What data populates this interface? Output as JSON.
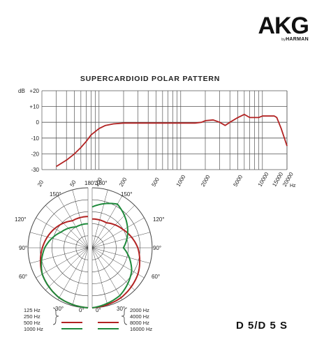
{
  "brand": {
    "name": "AKG",
    "by": "by",
    "parent": "HARMAN"
  },
  "model": "D 5/D 5 S",
  "chart_data": [
    {
      "type": "line",
      "title": "SUPERCARDIOID POLAR PATTERN",
      "xlabel_unit": "Hz",
      "ylabel_unit": "dB",
      "x_scale": "log",
      "xlim": [
        20,
        20000
      ],
      "ylim": [
        -30,
        20
      ],
      "x_ticks": [
        "20",
        "50",
        "100",
        "200",
        "500",
        "1000",
        "2000",
        "5000",
        "10000",
        "15000",
        "20000"
      ],
      "y_ticks": [
        "+20",
        "+10",
        "0",
        "-10",
        "-20",
        "-30"
      ],
      "grid": true,
      "series": [
        {
          "color": "#b22222",
          "x": [
            30,
            40,
            50,
            60,
            70,
            80,
            100,
            120,
            150,
            200,
            300,
            500,
            1000,
            1500,
            1800,
            2000,
            2500,
            3000,
            3500,
            4000,
            5000,
            6000,
            7000,
            8000,
            9000,
            10000,
            12000,
            14000,
            15000,
            17000,
            20000
          ],
          "y": [
            -28,
            -24,
            -20,
            -16,
            -12,
            -8,
            -4,
            -2,
            -1,
            -0.5,
            -0.5,
            -0.5,
            -0.5,
            -0.5,
            0,
            1,
            1.5,
            0,
            -2,
            0,
            3,
            5,
            3,
            3,
            3,
            4,
            4,
            4,
            3,
            -4,
            -15
          ]
        }
      ]
    },
    {
      "type": "polar",
      "angle_labels": [
        "180°",
        "150°",
        "120°",
        "90°",
        "60°",
        "30°",
        "0°"
      ],
      "legend": [
        {
          "label": "125 Hz",
          "color": "#b22222",
          "side": "left"
        },
        {
          "label": "250 Hz",
          "color": "#b22222",
          "side": "left"
        },
        {
          "label": "500 Hz",
          "color": "#b22222",
          "side": "left"
        },
        {
          "label": "1000 Hz",
          "color": "#1f8a3c",
          "side": "left"
        },
        {
          "label": "2000 Hz",
          "color": "#b22222",
          "side": "right"
        },
        {
          "label": "4000 Hz",
          "color": "#b22222",
          "side": "right"
        },
        {
          "label": "8000 Hz",
          "color": "#b22222",
          "side": "right"
        },
        {
          "label": "16000 Hz",
          "color": "#1f8a3c",
          "side": "right"
        }
      ],
      "series": [
        {
          "label": "125 Hz",
          "color": "#b22222",
          "side": "left",
          "angles": [
            0,
            30,
            60,
            90,
            120,
            150,
            180
          ],
          "dB": [
            0,
            -1,
            -3,
            -6,
            -9,
            -12,
            -12
          ]
        },
        {
          "label": "1000 Hz",
          "color": "#1f8a3c",
          "side": "left",
          "angles": [
            0,
            30,
            60,
            90,
            120,
            150,
            180
          ],
          "dB": [
            0,
            -1,
            -3,
            -7,
            -12,
            -15,
            -15
          ]
        },
        {
          "label": "2000 Hz",
          "color": "#b22222",
          "side": "right",
          "angles": [
            0,
            30,
            60,
            90,
            120,
            150,
            180
          ],
          "dB": [
            0,
            -1,
            -3,
            -6,
            -10,
            -13,
            -13
          ]
        },
        {
          "label": "16000 Hz",
          "color": "#1f8a3c",
          "side": "right",
          "angles": [
            0,
            30,
            60,
            90,
            120,
            150,
            180
          ],
          "dB": [
            0,
            -2,
            -6,
            -12,
            -8,
            -4,
            -8
          ]
        }
      ]
    }
  ]
}
